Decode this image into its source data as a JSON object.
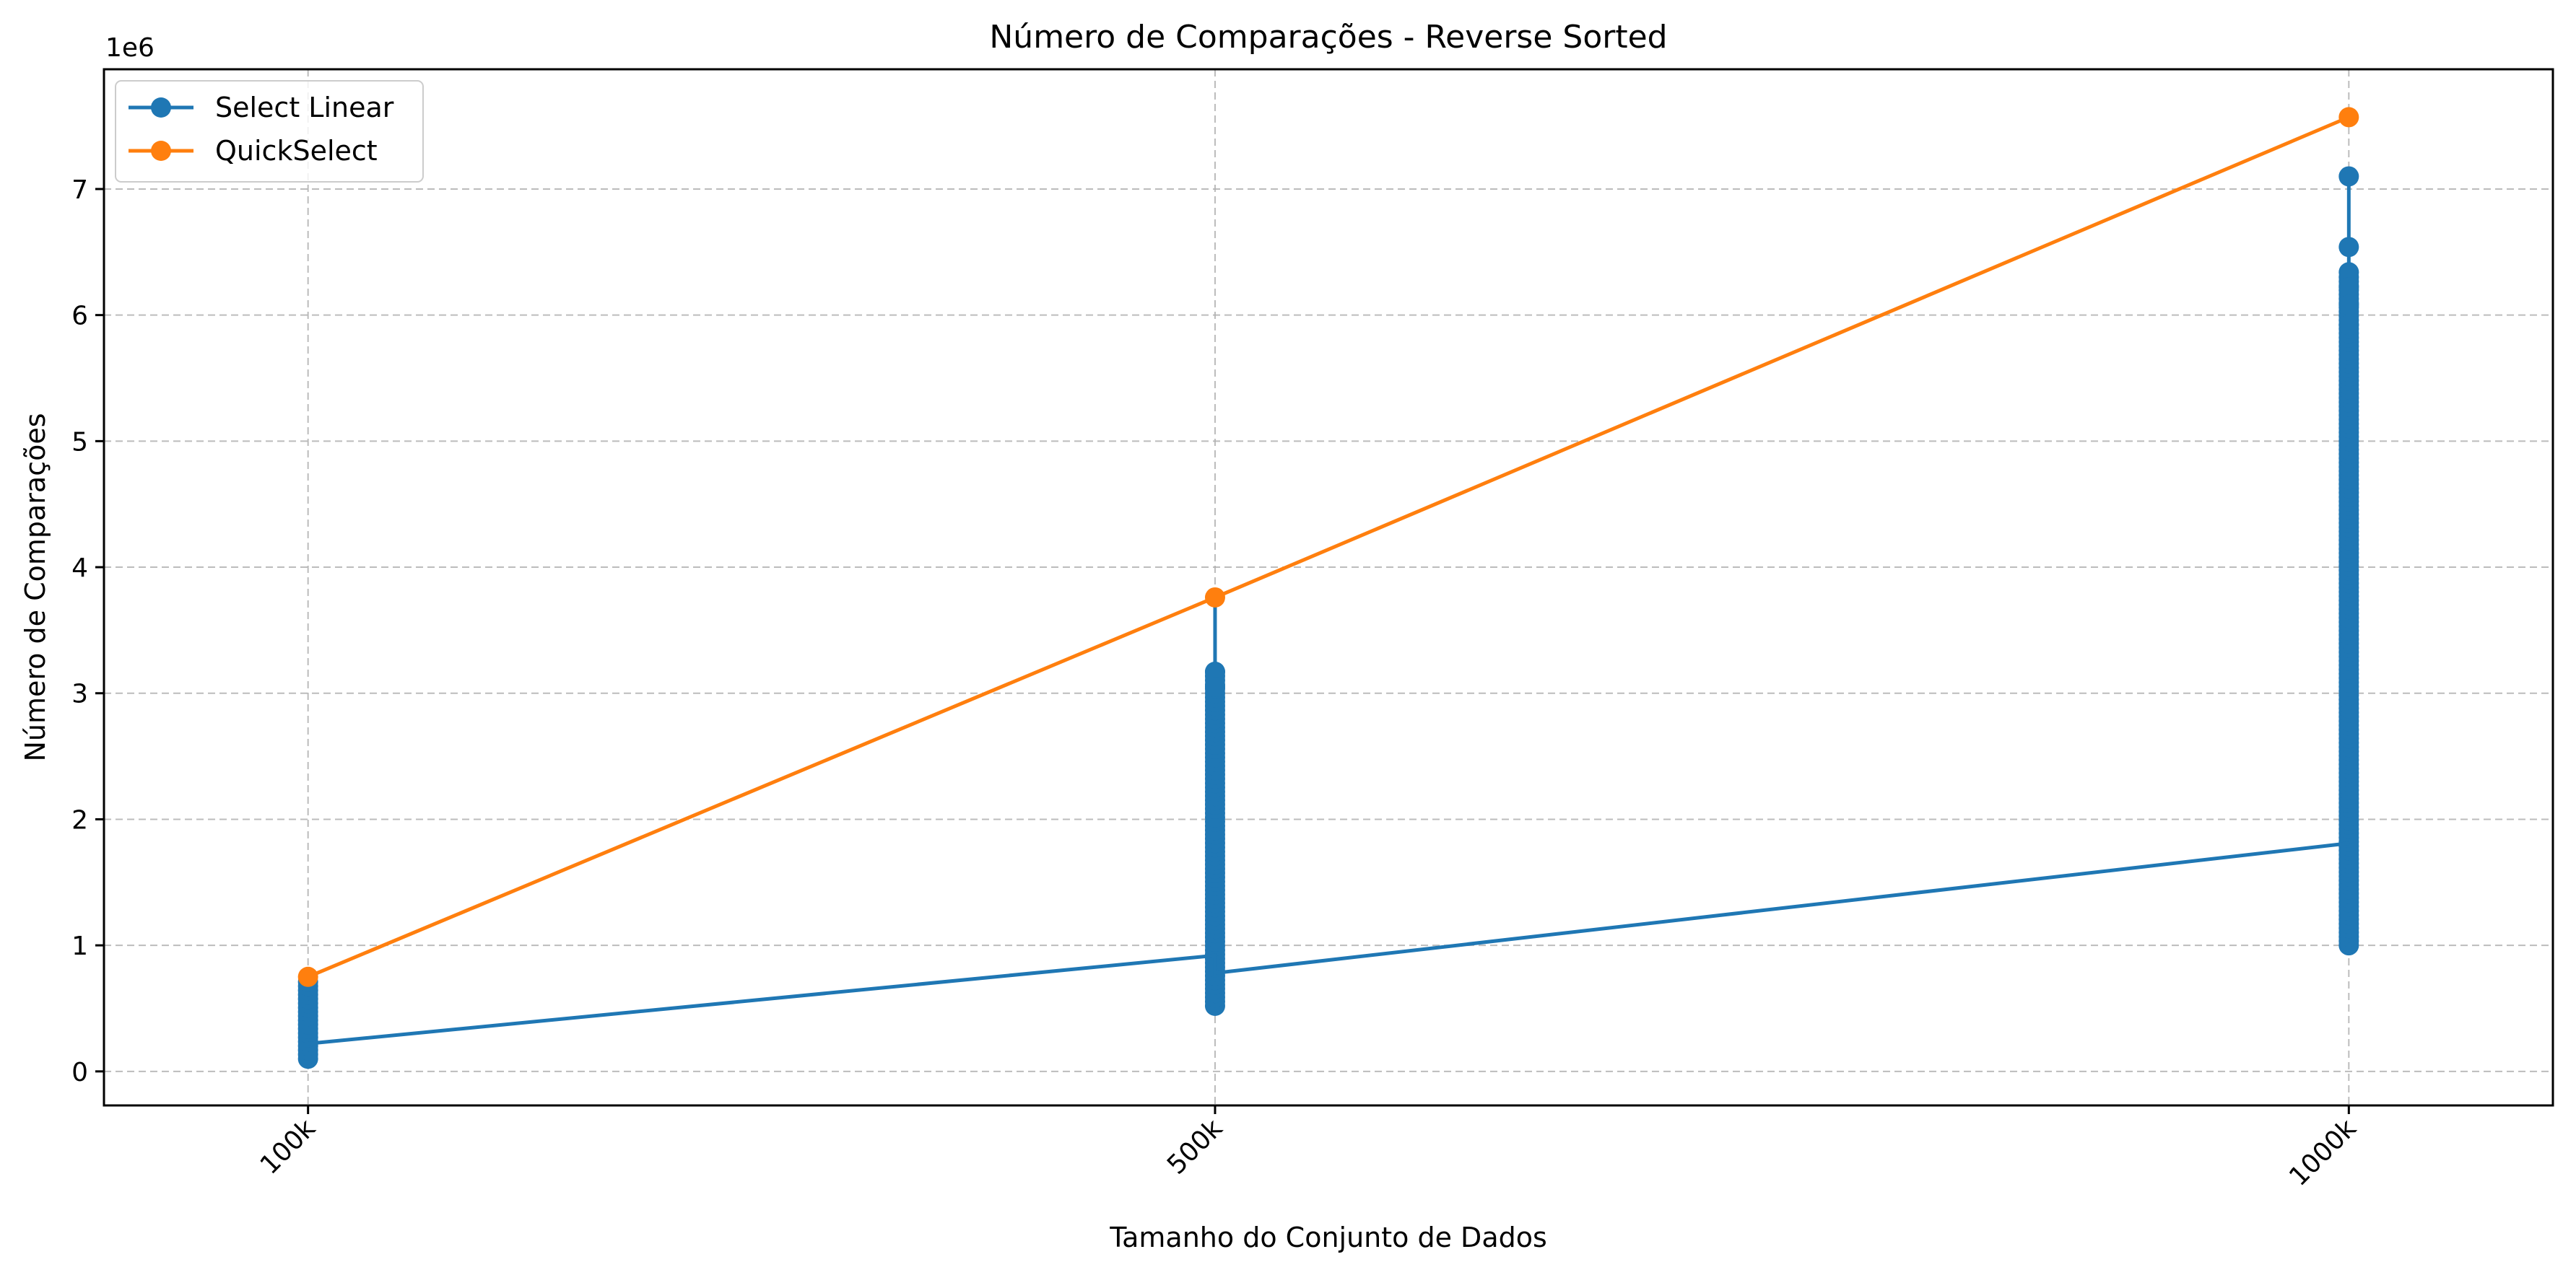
{
  "chart_data": {
    "type": "line",
    "title": "Número de Comparações - Reverse Sorted",
    "xlabel": "Tamanho do Conjunto de Dados",
    "ylabel": "Número de Comparações",
    "y_offset_label": "1e6",
    "categories": [
      "100k",
      "500k",
      "1000k"
    ],
    "x": [
      100000,
      500000,
      1000000
    ],
    "xlim": [
      10000,
      1090000
    ],
    "ylim": [
      -0.27,
      7.95
    ],
    "y_scale_note": "values in millions (×1e6)",
    "yticks": [
      0,
      1,
      2,
      3,
      4,
      5,
      6,
      7
    ],
    "ytick_labels": [
      "0",
      "1",
      "2",
      "3",
      "4",
      "5",
      "6",
      "7"
    ],
    "grid": true,
    "legend_position": "top-left",
    "series": [
      {
        "name": "Select Linear",
        "color": "#1f77b4",
        "marker": "circle",
        "main_line": [
          {
            "x": 100000,
            "y": 0.22
          },
          {
            "x": 500000,
            "y": 0.92
          },
          {
            "x": 500000,
            "y": 0.78
          },
          {
            "x": 1000000,
            "y": 1.81
          }
        ],
        "vertical_spreads": [
          {
            "x": 100000,
            "min": 0.1,
            "max": 0.71
          },
          {
            "x": 500000,
            "min": 0.52,
            "max": 3.75,
            "dense_max": 3.17
          },
          {
            "x": 1000000,
            "min": 1.0,
            "max": 7.1,
            "dense_max": 6.3
          }
        ],
        "notable_points": [
          {
            "x": 1000000,
            "y": 7.1
          },
          {
            "x": 1000000,
            "y": 6.54
          },
          {
            "x": 1000000,
            "y": 6.34
          },
          {
            "x": 1000000,
            "y": 6.22
          },
          {
            "x": 1000000,
            "y": 6.08
          },
          {
            "x": 1000000,
            "y": 5.92
          },
          {
            "x": 500000,
            "y": 3.17
          },
          {
            "x": 500000,
            "y": 3.05
          }
        ]
      },
      {
        "name": "QuickSelect",
        "color": "#ff7f0e",
        "marker": "circle",
        "points": [
          {
            "x": 100000,
            "y": 0.75
          },
          {
            "x": 500000,
            "y": 3.76
          },
          {
            "x": 1000000,
            "y": 7.57
          }
        ]
      }
    ]
  }
}
